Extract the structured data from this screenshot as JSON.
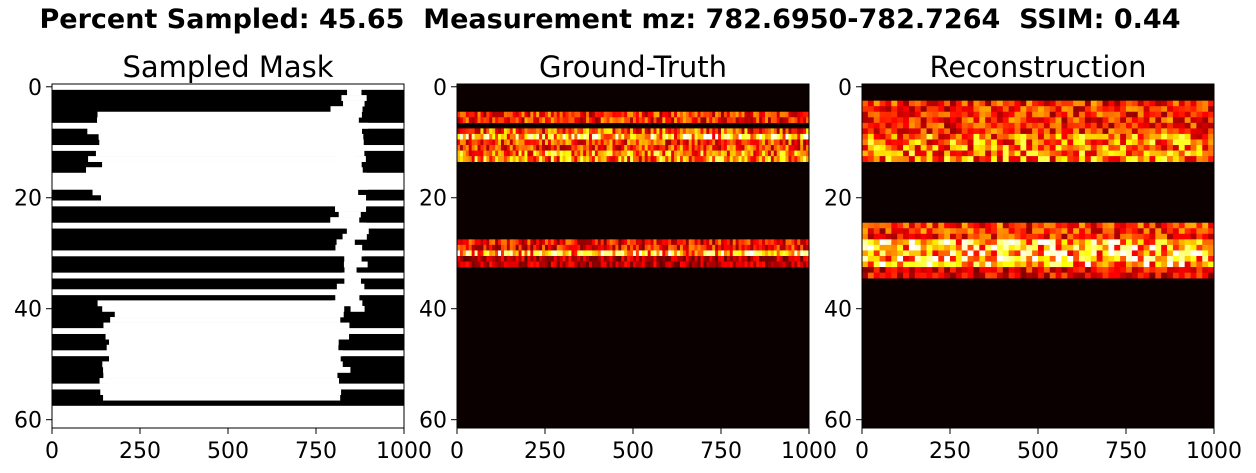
{
  "figure": {
    "suptitle": "Percent Sampled: 45.65  Measurement mz: 782.6950-782.7264  SSIM: 0.44"
  },
  "chart_data": [
    {
      "type": "heatmap",
      "title": "Sampled Mask",
      "xlabel": "",
      "ylabel": "",
      "xlim": [
        0,
        1000
      ],
      "ylim": [
        61.5,
        -0.5
      ],
      "xticks": [
        "0",
        "250",
        "500",
        "750",
        "1000"
      ],
      "yticks": [
        "0",
        "20",
        "40",
        "60"
      ],
      "colors": {
        "sampled": "#ffffff",
        "unsampled": "#000000"
      },
      "sampled_rows": [
        0,
        7,
        11,
        16,
        17,
        18,
        21,
        25,
        30,
        34,
        37,
        44,
        48,
        54,
        58,
        59,
        60,
        61
      ],
      "sampled_regions": [
        {
          "label": "upper-blob",
          "row_range": [
            5,
            20
          ],
          "x_range": [
            120,
            850
          ]
        },
        {
          "label": "lower-blob",
          "row_range": [
            39,
            56
          ],
          "x_range": [
            150,
            830
          ]
        },
        {
          "label": "right-streak",
          "row_range": [
            1,
            40
          ],
          "x_range": [
            820,
            880
          ]
        }
      ]
    },
    {
      "type": "heatmap",
      "title": "Ground-Truth",
      "xlabel": "",
      "ylabel": "",
      "xlim": [
        0,
        1000
      ],
      "ylim": [
        61.5,
        -0.5
      ],
      "xticks": [
        "0",
        "250",
        "500",
        "750",
        "1000"
      ],
      "yticks": [
        "0",
        "20",
        "40",
        "60"
      ],
      "colormap": "hot",
      "background": "#0a0000",
      "bands": [
        {
          "rows": [
            5,
            6
          ],
          "intensity": 0.55
        },
        {
          "rows": [
            8,
            8
          ],
          "intensity": 0.65
        },
        {
          "rows": [
            9,
            9
          ],
          "intensity": 0.9
        },
        {
          "rows": [
            10,
            11
          ],
          "intensity": 0.6
        },
        {
          "rows": [
            12,
            13
          ],
          "intensity": 0.75
        },
        {
          "rows": [
            28,
            29
          ],
          "intensity": 0.5
        },
        {
          "rows": [
            30,
            30
          ],
          "intensity": 0.9
        },
        {
          "rows": [
            31,
            32
          ],
          "intensity": 0.35
        }
      ]
    },
    {
      "type": "heatmap",
      "title": "Reconstruction",
      "xlabel": "",
      "ylabel": "",
      "xlim": [
        0,
        1000
      ],
      "ylim": [
        61.5,
        -0.5
      ],
      "xticks": [
        "0",
        "250",
        "500",
        "750",
        "1000"
      ],
      "yticks": [
        "0",
        "20",
        "40",
        "60"
      ],
      "colormap": "hot",
      "background": "#0a0000",
      "bands": [
        {
          "rows": [
            3,
            8
          ],
          "intensity": 0.55
        },
        {
          "rows": [
            9,
            13
          ],
          "intensity": 0.72
        },
        {
          "rows": [
            25,
            27
          ],
          "intensity": 0.55
        },
        {
          "rows": [
            28,
            32
          ],
          "intensity": 0.9
        },
        {
          "rows": [
            33,
            34
          ],
          "intensity": 0.45
        }
      ]
    }
  ]
}
